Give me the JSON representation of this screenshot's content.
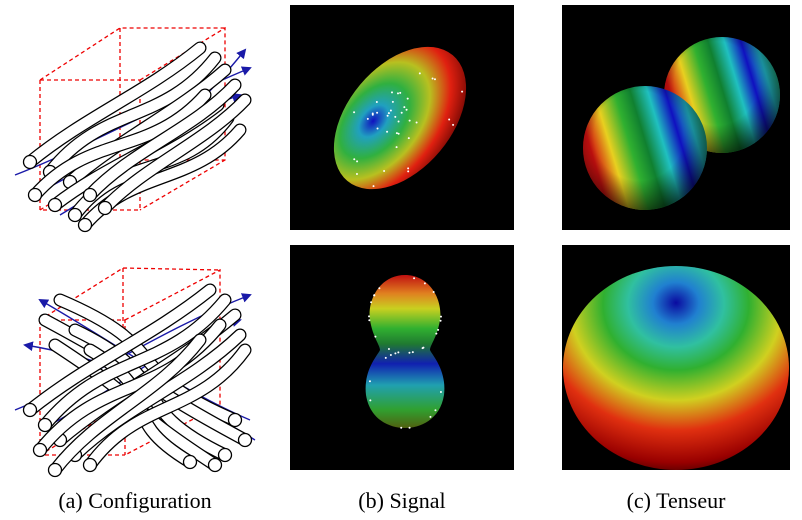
{
  "captions": [
    "(a) Configuration",
    "(b) Signal",
    "(c) Tenseur"
  ]
}
